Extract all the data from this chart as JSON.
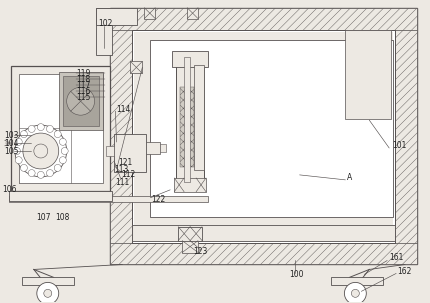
{
  "bg": "#ede9e3",
  "lc": "#555050",
  "wh": "#ffffff",
  "lw_main": 0.8,
  "lw_thin": 0.45,
  "lw_hatch": 0.3,
  "fs": 5.5,
  "fc_label": "#222222",
  "hatch_dense": "////",
  "hatch_xx": "xxxx"
}
